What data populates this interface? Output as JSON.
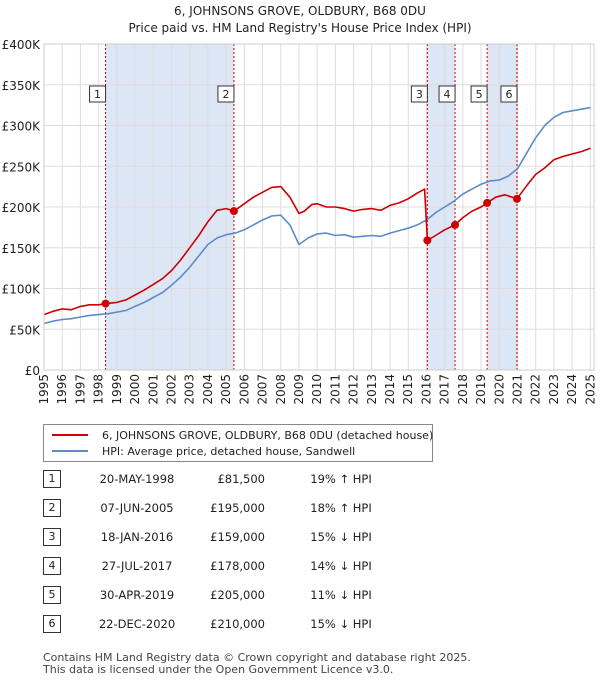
{
  "chart_data": {
    "type": "line",
    "title": "6, JOHNSONS GROVE, OLDBURY, B68 0DU",
    "subtitle": "Price paid vs. HM Land Registry's House Price Index (HPI)",
    "xlim": [
      1995,
      2025.2
    ],
    "ylim": [
      0,
      400000
    ],
    "x_ticks": [
      1995,
      1996,
      1997,
      1998,
      1999,
      2000,
      2001,
      2002,
      2003,
      2004,
      2005,
      2006,
      2007,
      2008,
      2009,
      2010,
      2011,
      2012,
      2013,
      2014,
      2015,
      2016,
      2017,
      2018,
      2019,
      2020,
      2021,
      2022,
      2023,
      2024,
      2025
    ],
    "y_ticks": [
      0,
      50000,
      100000,
      150000,
      200000,
      250000,
      300000,
      350000,
      400000
    ],
    "y_tick_labels": [
      "£0",
      "£50K",
      "£100K",
      "£150K",
      "£200K",
      "£250K",
      "£300K",
      "£350K",
      "£400K"
    ],
    "colors": {
      "property": "#cc0000",
      "hpi": "#5b8cc8",
      "shade": "#dde6f5",
      "vline": "#cc0000"
    },
    "series": [
      {
        "name": "6, JOHNSONS GROVE, OLDBURY, B68 0DU (detached house)",
        "color": "#cc0000",
        "x": [
          1995.0,
          1995.5,
          1996.0,
          1996.5,
          1997.0,
          1997.5,
          1998.0,
          1998.38,
          1999.0,
          1999.5,
          2000.0,
          2000.5,
          2001.0,
          2001.5,
          2002.0,
          2002.5,
          2003.0,
          2003.5,
          2004.0,
          2004.5,
          2005.0,
          2005.43,
          2006.0,
          2006.5,
          2007.0,
          2007.5,
          2008.0,
          2008.5,
          2009.0,
          2009.3,
          2009.7,
          2010.0,
          2010.5,
          2011.0,
          2011.5,
          2012.0,
          2012.5,
          2013.0,
          2013.5,
          2014.0,
          2014.5,
          2015.0,
          2015.5,
          2015.9,
          2016.05,
          2016.5,
          2017.0,
          2017.57,
          2018.0,
          2018.5,
          2019.0,
          2019.33,
          2019.8,
          2020.3,
          2020.97,
          2021.5,
          2022.0,
          2022.5,
          2023.0,
          2023.5,
          2024.0,
          2024.5,
          2025.0
        ],
        "y": [
          68000,
          72000,
          75000,
          74000,
          78000,
          80000,
          80000,
          81500,
          83000,
          86000,
          92000,
          98000,
          105000,
          112000,
          122000,
          135000,
          150000,
          165000,
          182000,
          196000,
          198000,
          195000,
          204000,
          212000,
          218000,
          224000,
          225000,
          212000,
          192000,
          195000,
          203000,
          204000,
          200000,
          200000,
          198000,
          195000,
          197000,
          198000,
          196000,
          202000,
          205000,
          210000,
          217000,
          222000,
          159000,
          165000,
          172000,
          178000,
          187000,
          195000,
          200000,
          205000,
          212000,
          215000,
          210000,
          226000,
          240000,
          248000,
          258000,
          262000,
          265000,
          268000,
          272000
        ]
      },
      {
        "name": "HPI: Average price, detached house, Sandwell",
        "color": "#5b8cc8",
        "x": [
          1995.0,
          1995.5,
          1996.0,
          1996.5,
          1997.0,
          1997.5,
          1998.0,
          1998.5,
          1999.0,
          1999.5,
          2000.0,
          2000.5,
          2001.0,
          2001.5,
          2002.0,
          2002.5,
          2003.0,
          2003.5,
          2004.0,
          2004.5,
          2005.0,
          2005.5,
          2006.0,
          2006.5,
          2007.0,
          2007.5,
          2008.0,
          2008.5,
          2009.0,
          2009.5,
          2010.0,
          2010.5,
          2011.0,
          2011.5,
          2012.0,
          2012.5,
          2013.0,
          2013.5,
          2014.0,
          2014.5,
          2015.0,
          2015.5,
          2016.0,
          2016.5,
          2017.0,
          2017.5,
          2018.0,
          2018.5,
          2019.0,
          2019.5,
          2020.0,
          2020.5,
          2021.0,
          2021.5,
          2022.0,
          2022.5,
          2023.0,
          2023.5,
          2024.0,
          2024.5,
          2025.0
        ],
        "y": [
          57000,
          60000,
          62000,
          63000,
          65000,
          67000,
          68000,
          69000,
          71000,
          73000,
          78000,
          83000,
          89000,
          95000,
          104000,
          114000,
          126000,
          140000,
          154000,
          162000,
          166000,
          168000,
          172000,
          178000,
          184000,
          189000,
          190000,
          178000,
          154000,
          162000,
          167000,
          168000,
          165000,
          166000,
          163000,
          164000,
          165000,
          164000,
          168000,
          171000,
          174000,
          178000,
          184000,
          193000,
          200000,
          207000,
          216000,
          222000,
          228000,
          232000,
          233000,
          238000,
          247000,
          266000,
          285000,
          300000,
          310000,
          316000,
          318000,
          320000,
          322000
        ]
      }
    ],
    "transactions": [
      {
        "label": "1",
        "x": 1998.38,
        "y": 81500
      },
      {
        "label": "2",
        "x": 2005.43,
        "y": 195000
      },
      {
        "label": "3",
        "x": 2016.05,
        "y": 159000
      },
      {
        "label": "4",
        "x": 2017.57,
        "y": 178000
      },
      {
        "label": "5",
        "x": 2019.33,
        "y": 205000
      },
      {
        "label": "6",
        "x": 2020.97,
        "y": 210000
      }
    ],
    "shaded_ranges": [
      [
        1998.38,
        2005.43
      ],
      [
        2016.05,
        2017.57
      ],
      [
        2019.33,
        2020.97
      ]
    ]
  },
  "legend": {
    "property_label": "6, JOHNSONS GROVE, OLDBURY, B68 0DU (detached house)",
    "hpi_label": "HPI: Average price, detached house, Sandwell"
  },
  "sales": [
    {
      "num": "1",
      "date": "20-MAY-1998",
      "price": "£81,500",
      "hpi": "19% ↑ HPI"
    },
    {
      "num": "2",
      "date": "07-JUN-2005",
      "price": "£195,000",
      "hpi": "18% ↑ HPI"
    },
    {
      "num": "3",
      "date": "18-JAN-2016",
      "price": "£159,000",
      "hpi": "15% ↓ HPI"
    },
    {
      "num": "4",
      "date": "27-JUL-2017",
      "price": "£178,000",
      "hpi": "14% ↓ HPI"
    },
    {
      "num": "5",
      "date": "30-APR-2019",
      "price": "£205,000",
      "hpi": "11% ↓ HPI"
    },
    {
      "num": "6",
      "date": "22-DEC-2020",
      "price": "£210,000",
      "hpi": "15% ↓ HPI"
    }
  ],
  "footer": {
    "line1": "Contains HM Land Registry data © Crown copyright and database right 2025.",
    "line2": "This data is licensed under the Open Government Licence v3.0."
  }
}
